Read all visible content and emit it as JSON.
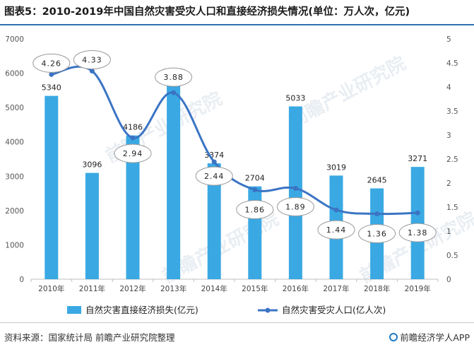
{
  "title": "图表5：2010-2019年中国自然灾害受灾人口和直接经济损失情况(单位：万人次，亿元)",
  "source": "资料来源：国家统计局 前瞻产业研究院整理",
  "brand": "前瞻经济学人APP",
  "watermark": "前瞻产业研究院",
  "colors": {
    "bar": "#3aa9e3",
    "line": "#3b74c4",
    "title_rule": "#2f6fb0"
  },
  "chart_data": {
    "type": "bar+line",
    "categories": [
      "2010年",
      "2011年",
      "2012年",
      "2013年",
      "2014年",
      "2015年",
      "2016年",
      "2017年",
      "2018年",
      "2019年"
    ],
    "series": [
      {
        "name": "自然灾害直接经济损失(亿元)",
        "type": "bar",
        "axis": "left",
        "values": [
          5340,
          3096,
          4186,
          5808,
          3374,
          2704,
          5033,
          3019,
          2645,
          3271
        ]
      },
      {
        "name": "自然灾害受灾人口(亿人次)",
        "type": "line",
        "axis": "right",
        "values": [
          4.26,
          4.33,
          2.94,
          3.88,
          2.44,
          1.86,
          1.89,
          1.44,
          1.36,
          1.38
        ]
      }
    ],
    "y_left": {
      "min": 0,
      "max": 7000,
      "ticks": [
        "0",
        "1000",
        "2000",
        "3000",
        "4000",
        "5000",
        "6000",
        "7000"
      ]
    },
    "y_right": {
      "min": 0,
      "max": 5,
      "ticks": [
        "0",
        "0.5",
        "1",
        "1.5",
        "2",
        "2.5",
        "3",
        "3.5",
        "4",
        "4.5",
        "5"
      ]
    },
    "bar_labels": [
      "5340",
      "3096",
      "4186",
      "5808",
      "3374",
      "2704",
      "5033",
      "3019",
      "2645",
      "3271"
    ],
    "line_labels": [
      "4.26",
      "4.33",
      "2.94",
      "3.88",
      "2.44",
      "1.86",
      "1.89",
      "1.44",
      "1.36",
      "1.38"
    ],
    "legend_position": "bottom",
    "grid": false
  }
}
